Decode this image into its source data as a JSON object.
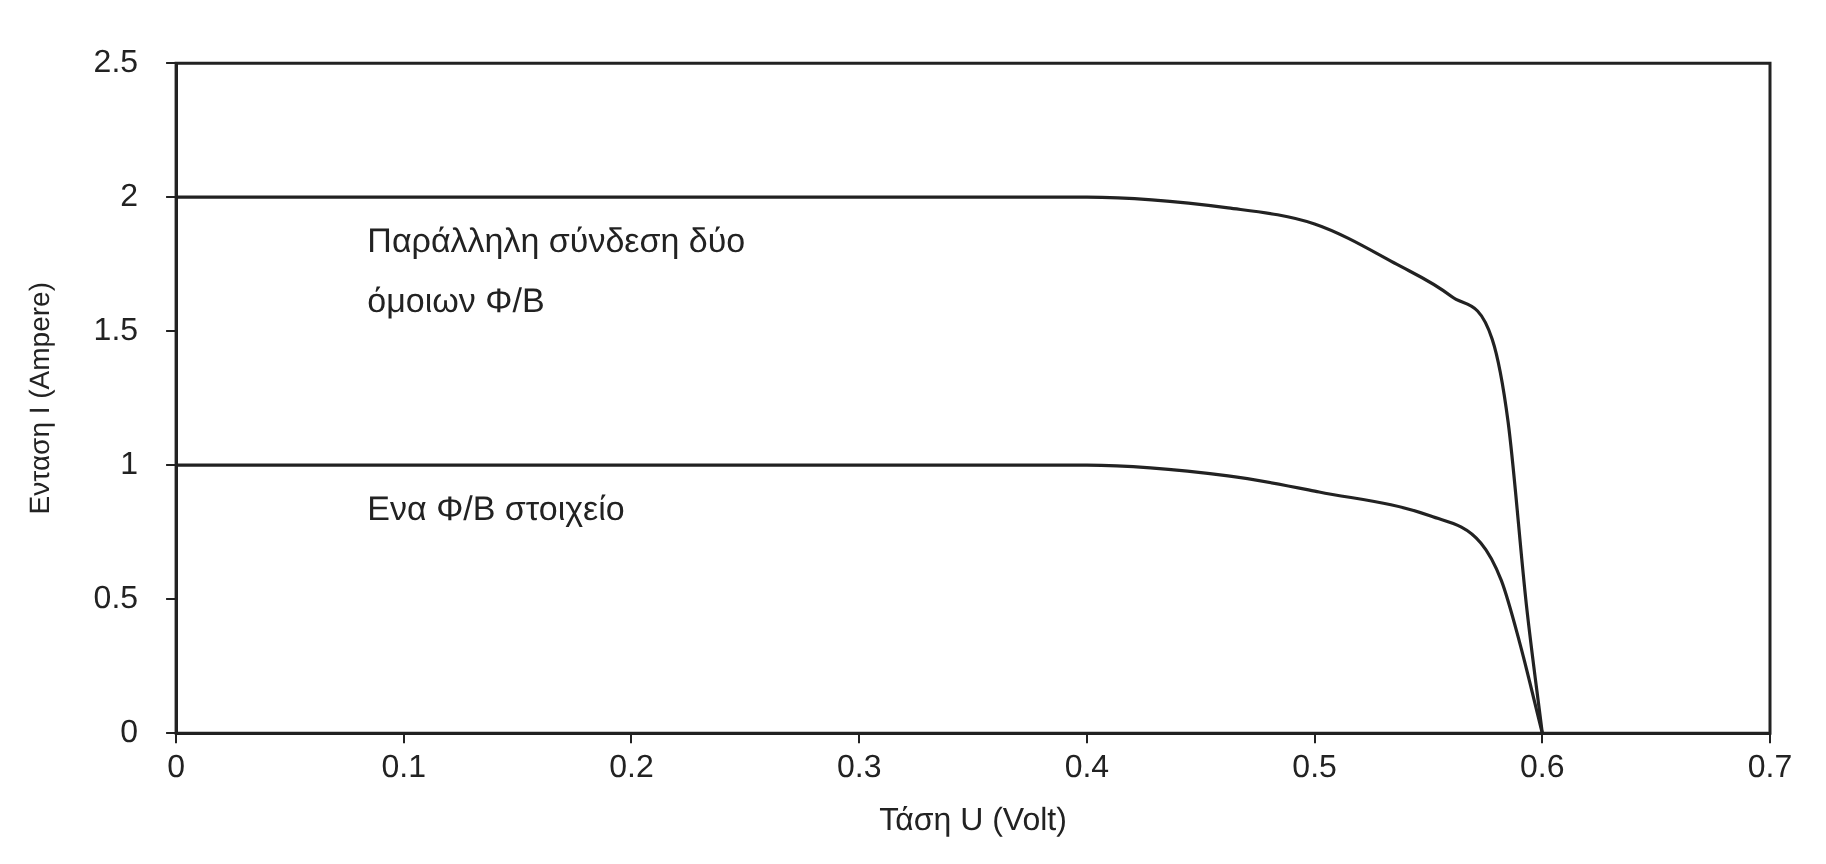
{
  "chart_data": {
    "type": "line",
    "xlabel": "Τάση U (Volt)",
    "ylabel": "Ενταση I (Ampere)",
    "xlim": [
      0,
      0.7
    ],
    "xticks": [
      0,
      0.1,
      0.2,
      0.3,
      0.4,
      0.5,
      0.6,
      0.7
    ],
    "ylim": [
      0,
      2.5
    ],
    "yticks": [
      0,
      0.5,
      1,
      1.5,
      2,
      2.5
    ],
    "grid": false,
    "legend": false,
    "marker": "none",
    "line_style": "solid",
    "series": [
      {
        "name": "Παράλληλη σύνδεση δύο όμοιων Φ/Β",
        "color": "#222222",
        "x": [
          0,
          0.1,
          0.2,
          0.3,
          0.4,
          0.462,
          0.5,
          0.536,
          0.56,
          0.578,
          0.585,
          0.593,
          0.6
        ],
        "values": [
          2.0,
          2.0,
          2.0,
          2.0,
          2.0,
          1.96,
          1.9,
          1.75,
          1.63,
          1.47,
          1.16,
          0.48,
          0
        ]
      },
      {
        "name": "Ενα Φ/Β στοιχείο",
        "color": "#222222",
        "x": [
          0,
          0.1,
          0.2,
          0.3,
          0.4,
          0.462,
          0.502,
          0.551,
          0.573,
          0.582,
          0.59,
          0.6
        ],
        "values": [
          1.0,
          1.0,
          1.0,
          1.0,
          1.0,
          0.96,
          0.9,
          0.81,
          0.71,
          0.57,
          0.34,
          0
        ]
      }
    ]
  }
}
